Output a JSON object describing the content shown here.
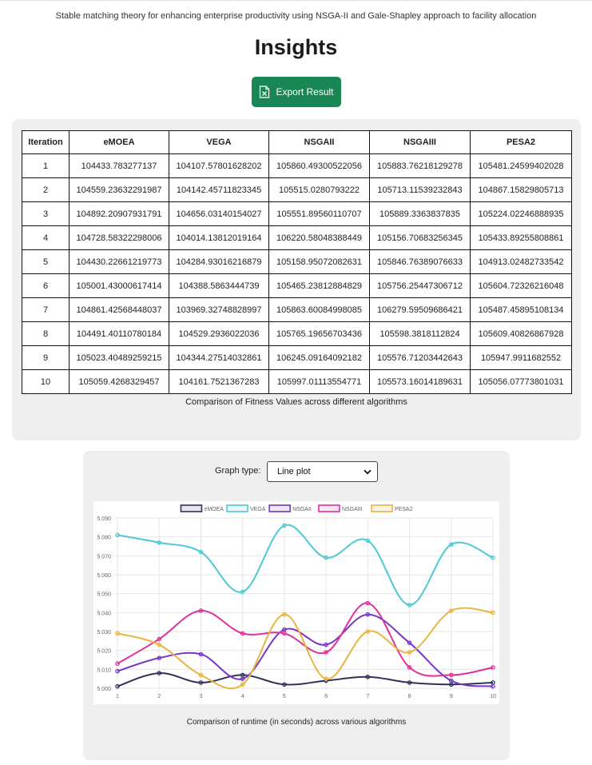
{
  "header": {
    "subtitle": "Stable matching theory for enhancing enterprise productivity using NSGA-II and Gale-Shapley approach to facility allocation",
    "title": "Insights",
    "export_label": "Export Result",
    "export_icon": "excel-file-icon",
    "accent": "#198754"
  },
  "table": {
    "headers": [
      "Iteration",
      "eMOEA",
      "VEGA",
      "NSGAII",
      "NSGAIII",
      "PESA2"
    ],
    "rows": [
      [
        "1",
        "104433.783277137",
        "104107.57801628202",
        "105860.49300522056",
        "105883.76218129278",
        "105481.24599402028"
      ],
      [
        "2",
        "104559.23632291987",
        "104142.45711823345",
        "105515.0280793222",
        "105713.11539232843",
        "104867.15829805713"
      ],
      [
        "3",
        "104892.20907931791",
        "104656.03140154027",
        "105551.89560110707",
        "105889.3363837835",
        "105224.02246888935"
      ],
      [
        "4",
        "104728.58322298006",
        "104014.13812019164",
        "106220.58048388449",
        "105156.70683256345",
        "105433.89255808861"
      ],
      [
        "5",
        "104430.22661219773",
        "104284.93016216879",
        "105158.95072082631",
        "105846.76389076633",
        "104913.02482733542"
      ],
      [
        "6",
        "105001.43000617414",
        "104388.5863444739",
        "105465.23812884829",
        "105756.25447306712",
        "105604.72326216048"
      ],
      [
        "7",
        "104861.42568448037",
        "103969.32748828997",
        "105863.60084998085",
        "106279.59509686421",
        "105487.45895108134"
      ],
      [
        "8",
        "104491.40110780184",
        "104529.2936022036",
        "105765.19656703436",
        "105598.3818112824",
        "105609.40826867928"
      ],
      [
        "9",
        "105023.40489259215",
        "104344.27514032861",
        "106245.09164092182",
        "105576.71203442643",
        "105947.9911682552"
      ],
      [
        "10",
        "105059.4268329457",
        "104161.7521367283",
        "105997.01113554771",
        "105573.16014189631",
        "105056.07773801031"
      ]
    ],
    "caption": "Comparison of Fitness Values across different algorithms"
  },
  "chart_controls": {
    "graph_type_label": "Graph type:",
    "graph_type_value": "Line plot"
  },
  "chart_caption": "Comparison of runtime (in seconds) across various algorithms",
  "chart_data": {
    "type": "line",
    "x": [
      1,
      2,
      3,
      4,
      5,
      6,
      7,
      8,
      9,
      10
    ],
    "ylim": [
      5.0,
      5.09
    ],
    "yticks": [
      "5.000",
      "5.010",
      "5.020",
      "5.030",
      "5.040",
      "5.050",
      "5.060",
      "5.070",
      "5.080",
      "5.090"
    ],
    "grid": true,
    "legend": "top",
    "series": [
      {
        "name": "eMOEA",
        "color": "#2e3258",
        "fill": "rgba(46,50,88,0.12)",
        "values": [
          5.001,
          5.008,
          5.003,
          5.007,
          5.002,
          5.004,
          5.006,
          5.003,
          5.002,
          5.003
        ]
      },
      {
        "name": "VEGA",
        "color": "#4dc9d6",
        "fill": "rgba(77,201,214,0.12)",
        "values": [
          5.081,
          5.077,
          5.072,
          5.051,
          5.086,
          5.069,
          5.078,
          5.044,
          5.076,
          5.069
        ]
      },
      {
        "name": "NSGAII",
        "color": "#7636c7",
        "fill": "rgba(118,54,199,0.12)",
        "values": [
          5.009,
          5.016,
          5.018,
          5.005,
          5.031,
          5.023,
          5.039,
          5.024,
          5.004,
          5.001
        ]
      },
      {
        "name": "NSGAIII",
        "color": "#e0309a",
        "fill": "rgba(224,48,154,0.12)",
        "values": [
          5.013,
          5.026,
          5.041,
          5.029,
          5.029,
          5.019,
          5.045,
          5.011,
          5.007,
          5.011
        ]
      },
      {
        "name": "PESA2",
        "color": "#e8b442",
        "fill": "rgba(232,180,66,0.15)",
        "values": [
          5.029,
          5.023,
          5.007,
          5.002,
          5.039,
          5.005,
          5.03,
          5.019,
          5.041,
          5.04
        ]
      }
    ]
  }
}
